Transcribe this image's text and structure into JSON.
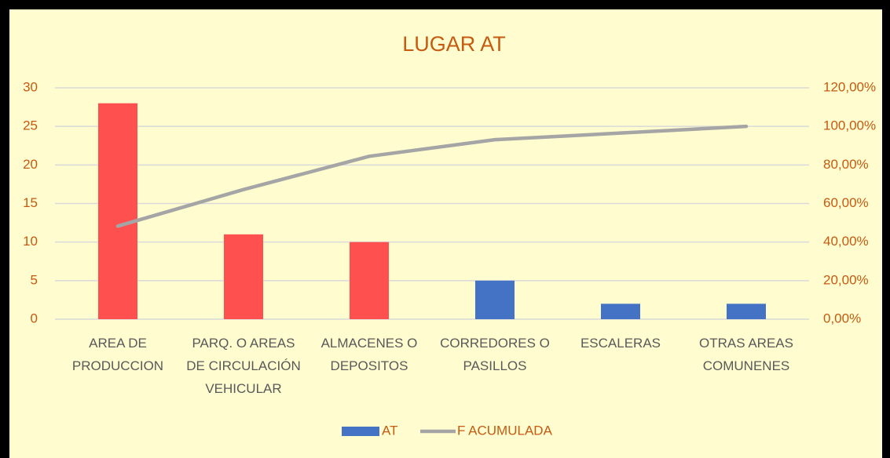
{
  "chart_data": {
    "type": "pareto",
    "title": "LUGAR AT",
    "categories": [
      [
        "AREA DE",
        "PRODUCCION"
      ],
      [
        "PARQ. O AREAS",
        "DE CIRCULACIÓN",
        "VEHICULAR"
      ],
      [
        "ALMACENES O",
        "DEPOSITOS"
      ],
      [
        "CORREDORES O",
        "PASILLOS"
      ],
      [
        "ESCALERAS"
      ],
      [
        "OTRAS AREAS",
        "COMUNENES"
      ]
    ],
    "series": [
      {
        "name": "AT",
        "color": "#4472c4",
        "bar_colors": [
          "#ff5050",
          "#ff5050",
          "#ff5050",
          "#4472c4",
          "#4472c4",
          "#4472c4"
        ],
        "values": [
          28,
          11,
          10,
          5,
          2,
          2
        ]
      },
      {
        "name": "F ACUMULADA",
        "color": "#a5a5a5",
        "axis": "y2",
        "values": [
          48.28,
          67.24,
          84.48,
          93.1,
          96.55,
          100
        ]
      }
    ],
    "ylim": [
      0,
      30
    ],
    "yticks": [
      0,
      5,
      10,
      15,
      20,
      25,
      30
    ],
    "y2lim": [
      0,
      120
    ],
    "y2ticks": [
      {
        "value": 0,
        "label": "0,00%"
      },
      {
        "value": 20,
        "label": "20,00%"
      },
      {
        "value": 40,
        "label": "40,00%"
      },
      {
        "value": 60,
        "label": "60,00%"
      },
      {
        "value": 80,
        "label": "80,00%"
      },
      {
        "value": 100,
        "label": "100,00%"
      },
      {
        "value": 120,
        "label": "120,00%"
      }
    ],
    "grid": true,
    "legend": "bottom"
  }
}
